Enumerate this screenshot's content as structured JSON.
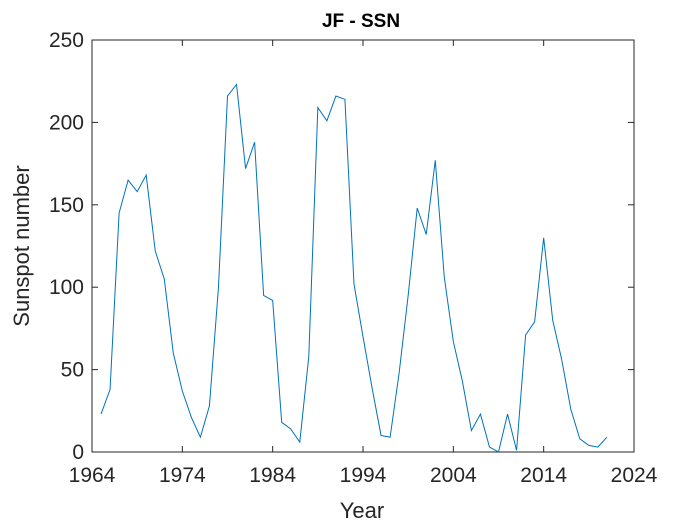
{
  "chart_data": {
    "type": "line",
    "title": "JF - SSN",
    "xlabel": "Year",
    "ylabel": "Sunspot number",
    "xlim": [
      1964,
      2024
    ],
    "ylim": [
      0,
      250
    ],
    "xticks": [
      "1964",
      "1974",
      "1984",
      "1994",
      "2004",
      "2014",
      "2024"
    ],
    "yticks": [
      "0",
      "50",
      "100",
      "150",
      "200",
      "250"
    ],
    "grid": false,
    "line_color": "#0072BD",
    "series": [
      {
        "x": [
          1965,
          1966,
          1967,
          1968,
          1969,
          1970,
          1971,
          1972,
          1973,
          1974,
          1975,
          1976,
          1977,
          1978,
          1979,
          1980,
          1981,
          1982,
          1983,
          1984,
          1985,
          1986,
          1987,
          1988,
          1989,
          1990,
          1991,
          1992,
          1993,
          1994,
          1995,
          1996,
          1997,
          1998,
          1999,
          2000,
          2001,
          2002,
          2003,
          2004,
          2005,
          2006,
          2007,
          2008,
          2009,
          2010,
          2011,
          2012,
          2013,
          2014,
          2015,
          2016,
          2017,
          2018,
          2019,
          2020,
          2021
        ],
        "values": [
          23,
          38,
          145,
          165,
          158,
          168,
          122,
          105,
          60,
          37,
          21,
          9,
          28,
          100,
          216,
          223,
          172,
          188,
          95,
          92,
          18,
          14,
          6,
          58,
          209,
          201,
          216,
          214,
          102,
          70,
          39,
          10,
          9,
          48,
          95,
          148,
          132,
          177,
          106,
          67,
          43,
          13,
          23,
          3,
          0,
          23,
          1,
          71,
          79,
          130,
          80,
          56,
          26,
          8,
          4,
          3,
          9
        ]
      }
    ]
  }
}
